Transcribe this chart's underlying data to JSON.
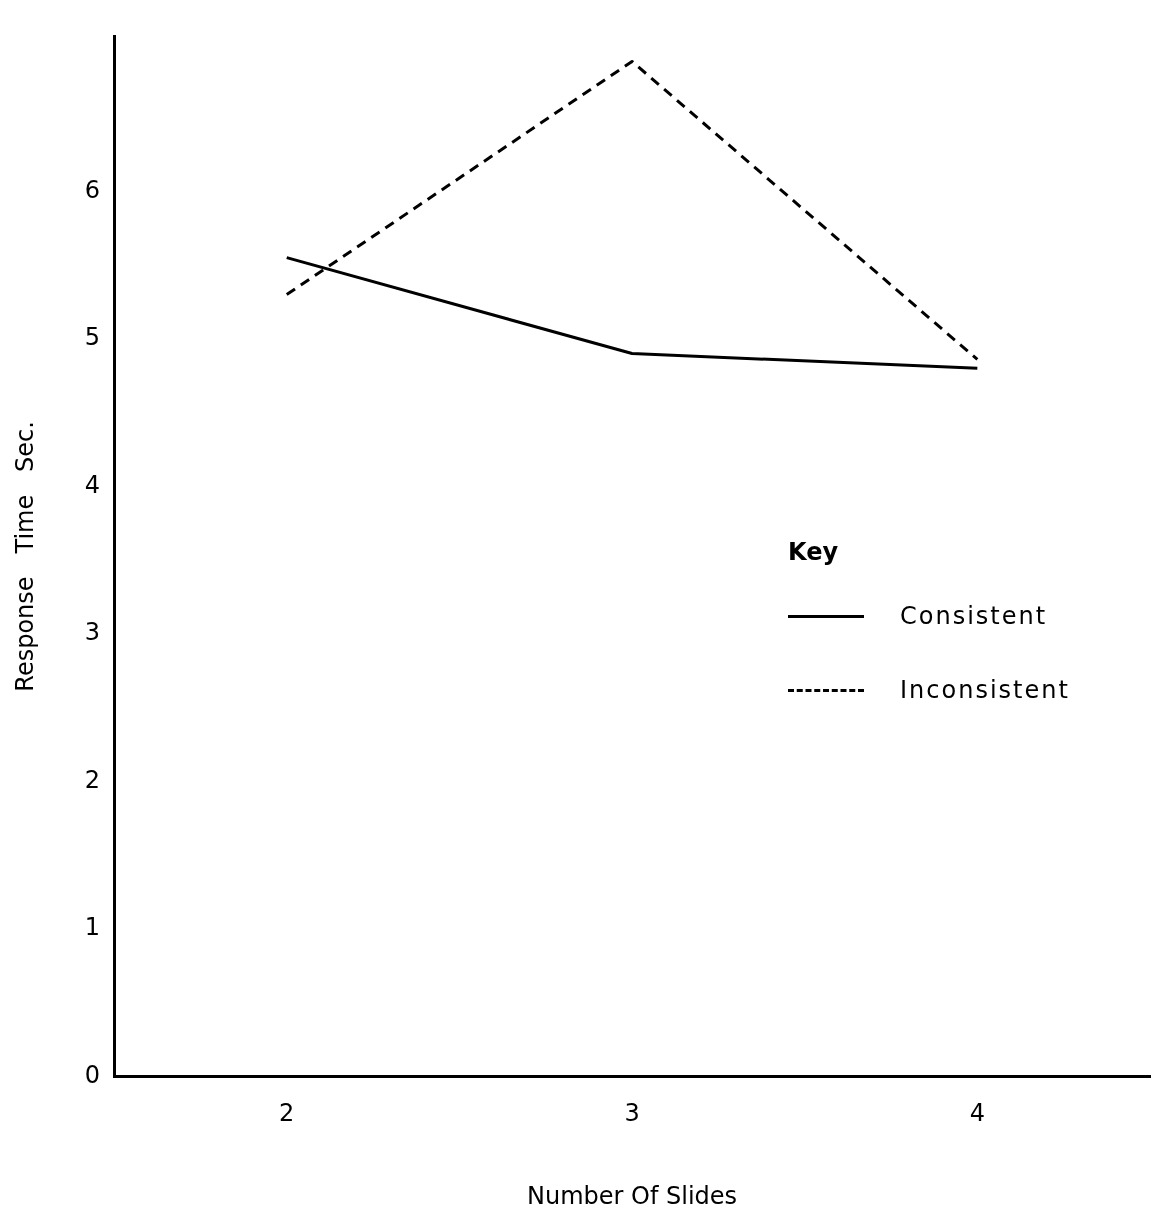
{
  "chart_data": {
    "type": "line",
    "xlabel": "Number Of Slides",
    "ylabel": "Response   Time   Sec.",
    "legend_title": "Key",
    "legend": "right",
    "grid": false,
    "marker": "none",
    "categories": [
      "2",
      "3",
      "4"
    ],
    "ylim": [
      0,
      7.05
    ],
    "yticks": [
      0,
      1,
      2,
      3,
      4,
      5,
      6
    ],
    "series": [
      {
        "name": "Consistent",
        "color": "#000000",
        "line_style": "solid",
        "values": [
          5.55,
          4.9,
          4.8
        ]
      },
      {
        "name": "Inconsistent",
        "color": "#000000",
        "line_style": "dashed",
        "values": [
          5.3,
          6.88,
          4.86
        ]
      }
    ]
  }
}
